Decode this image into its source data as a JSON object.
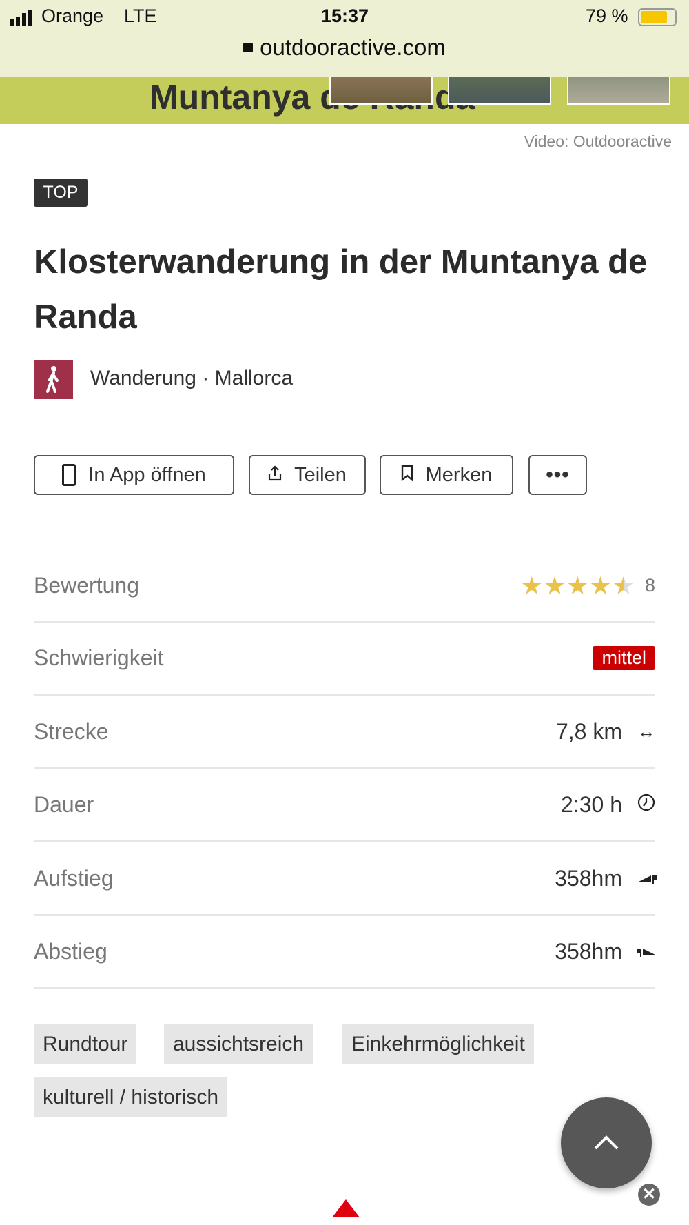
{
  "status_bar": {
    "carrier": "Orange",
    "network": "LTE",
    "time": "15:37",
    "battery": "79 %",
    "battery_level": 0.79,
    "url": "outdooractive.com"
  },
  "banner": {
    "title": "Muntanya de Randa"
  },
  "video_credit": "Video: Outdooractive",
  "badge": "TOP",
  "title": "Klosterwanderung in der Muntanya de Randa",
  "category": {
    "text": "Wanderung · Mallorca",
    "icon": "hiker-icon",
    "color": "#a0304a"
  },
  "actions": [
    {
      "label": "In App öffnen",
      "icon": "tablet-icon"
    },
    {
      "label": "Teilen",
      "icon": "share-icon"
    },
    {
      "label": "Merken",
      "icon": "bookmark-icon"
    },
    {
      "label": "",
      "icon": "more-icon"
    }
  ],
  "stats": [
    {
      "label": "Bewertung",
      "rating": 4.5,
      "max": 5,
      "count": "8"
    },
    {
      "label": "Schwierigkeit",
      "value": "mittel",
      "color": "#cc0000"
    },
    {
      "label": "Strecke",
      "value": "7,8 km",
      "icon": "distance-icon"
    },
    {
      "label": "Dauer",
      "value": "2:30 h",
      "icon": "clock-icon"
    },
    {
      "label": "Aufstieg",
      "value": "358hm",
      "icon": "ascent-icon"
    },
    {
      "label": "Abstieg",
      "value": "358hm",
      "icon": "descent-icon"
    }
  ],
  "tags": [
    "Rundtour",
    "aussichtsreich",
    "Einkehrmöglichkeit",
    "kulturell / historisch"
  ]
}
